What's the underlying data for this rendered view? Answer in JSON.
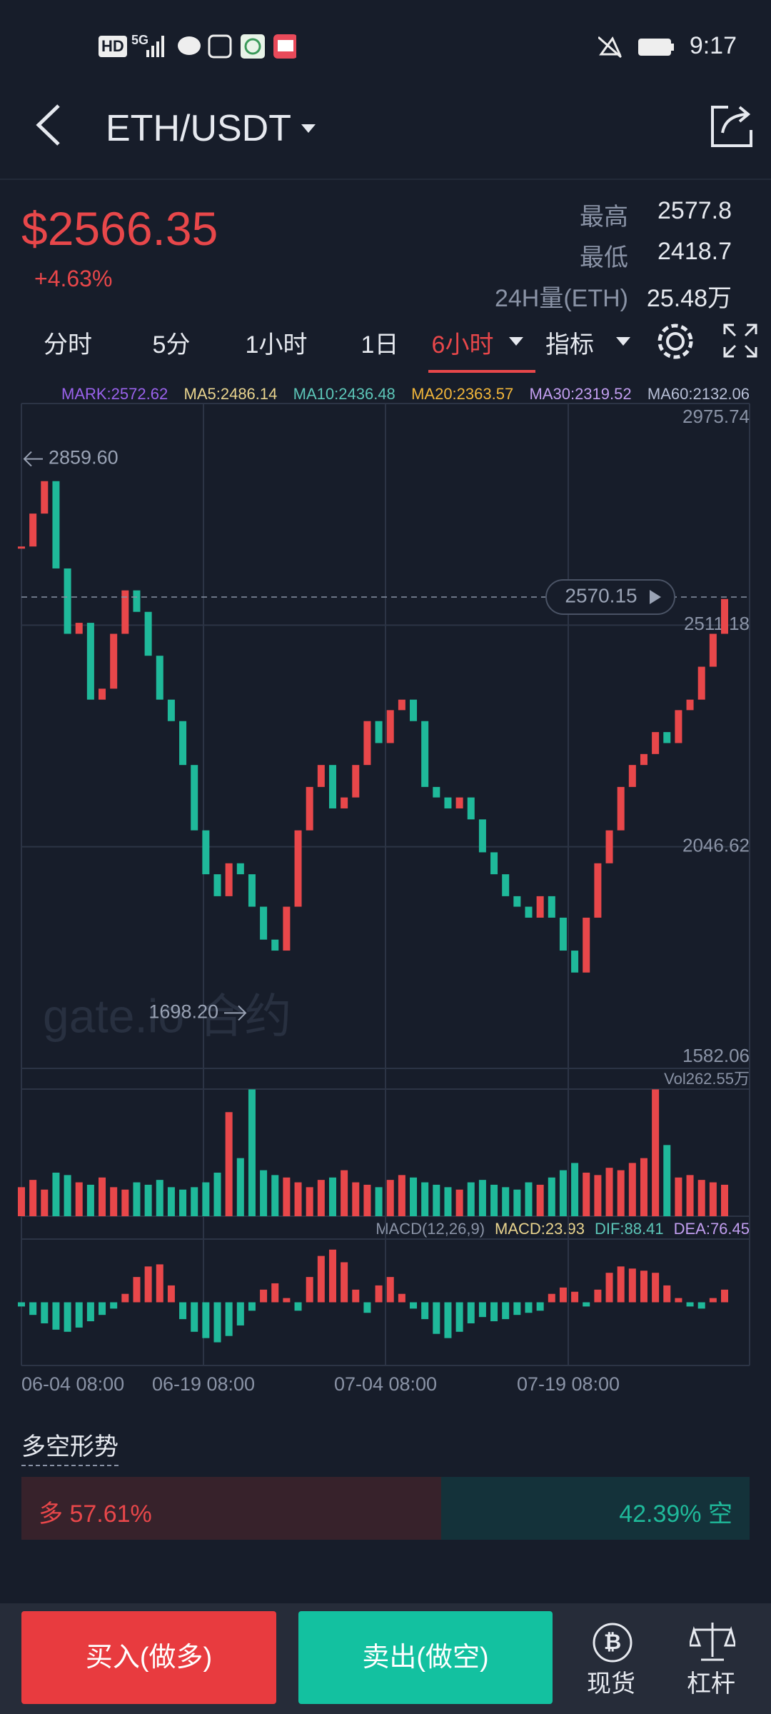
{
  "status_bar": {
    "icons": [
      "HD",
      "5G"
    ],
    "time": "9:17"
  },
  "header": {
    "pair": "ETH/USDT"
  },
  "ticker": {
    "price": "$2566.35",
    "change": "+4.63%",
    "stats": [
      {
        "label": "最高",
        "value": "2577.8"
      },
      {
        "label": "最低",
        "value": "2418.7"
      },
      {
        "label": "24H量(ETH)",
        "value": "25.48万"
      }
    ]
  },
  "tabs": {
    "items": [
      "分时",
      "5分",
      "1小时",
      "1日",
      "6小时",
      "指标"
    ],
    "active": 4
  },
  "chart_data": {
    "type": "candle",
    "indicators": [
      {
        "label": "MARK:2572.62",
        "color": "#9a62ec"
      },
      {
        "label": "MA5:2486.14",
        "color": "#e9d48e"
      },
      {
        "label": "MA10:2436.48",
        "color": "#5cc6b8"
      },
      {
        "label": "MA20:2363.57",
        "color": "#f2b63a"
      },
      {
        "label": "MA30:2319.52",
        "color": "#c29ef0"
      },
      {
        "label": "MA60:2132.06",
        "color": "#b7bfd6"
      }
    ],
    "ylim": [
      1582.06,
      2975.74
    ],
    "yticks": [
      2975.74,
      2511.18,
      2046.62,
      1582.06
    ],
    "values": [
      2676,
      2745,
      2813,
      2630,
      2493,
      2516,
      2355,
      2378,
      2493,
      2584,
      2539,
      2447,
      2355,
      2310,
      2218,
      2081,
      1989,
      1943,
      2012,
      1989,
      1921,
      1852,
      1829,
      1921,
      2081,
      2172,
      2218,
      2127,
      2150,
      2218,
      2310,
      2264,
      2333,
      2355,
      2310,
      2172,
      2150,
      2127,
      2150,
      2104,
      2035,
      1989,
      1943,
      1921,
      1898,
      1943,
      1898,
      1829,
      1783,
      1898,
      2012,
      2081,
      2172,
      2218,
      2241,
      2287,
      2264,
      2333,
      2355,
      2424,
      2493,
      2566
    ],
    "up_color": "#e8474a",
    "down_color": "#1fb99a",
    "annotations": {
      "high": {
        "value": 2859.6,
        "label": "2859.60"
      },
      "low": {
        "value": 1698.2,
        "label": "1698.20"
      },
      "last": 2570.15
    },
    "watermark": "gate.io 合约",
    "x_labels": [
      "06-04 08:00",
      "06-19 08:00",
      "07-04 08:00",
      "07-19 08:00"
    ],
    "volume": {
      "label": "Vol262.55万",
      "ylim": [
        0,
        262.55
      ],
      "values": [
        60,
        75,
        55,
        90,
        85,
        70,
        65,
        80,
        60,
        55,
        70,
        65,
        75,
        60,
        55,
        60,
        70,
        90,
        215,
        120,
        262,
        95,
        85,
        80,
        70,
        60,
        75,
        80,
        95,
        70,
        65,
        60,
        75,
        85,
        80,
        70,
        65,
        60,
        55,
        70,
        75,
        65,
        60,
        55,
        70,
        65,
        80,
        95,
        110,
        90,
        85,
        100,
        95,
        110,
        120,
        262,
        147,
        80,
        85,
        75,
        70,
        65
      ]
    },
    "macd": {
      "labels": [
        {
          "label": "MACD(12,26,9)",
          "color": "#8a93a6"
        },
        {
          "label": "MACD:23.93",
          "color": "#e9d48e"
        },
        {
          "label": "DIF:88.41",
          "color": "#5cc6b8"
        },
        {
          "label": "DEA:76.45",
          "color": "#c29ef0"
        }
      ],
      "ylim": [
        -150,
        150
      ],
      "values": [
        -10,
        -30,
        -50,
        -65,
        -70,
        -60,
        -45,
        -30,
        -15,
        20,
        60,
        85,
        90,
        40,
        -40,
        -70,
        -85,
        -95,
        -80,
        -55,
        -20,
        30,
        45,
        10,
        -20,
        60,
        110,
        125,
        95,
        30,
        -25,
        40,
        60,
        20,
        -15,
        -40,
        -75,
        -85,
        -70,
        -50,
        -35,
        -45,
        -40,
        -30,
        -25,
        -20,
        20,
        35,
        25,
        -10,
        30,
        70,
        85,
        80,
        75,
        70,
        40,
        10,
        -10,
        -15,
        10,
        30
      ]
    }
  },
  "sentiment": {
    "title": "多空形势",
    "long": {
      "value": 57.61,
      "label": "多 57.61%"
    },
    "short": {
      "value": 42.39,
      "label": "42.39% 空"
    }
  },
  "actions": {
    "buy": "买入(做多)",
    "sell": "卖出(做空)",
    "spot": "现货",
    "margin": "杠杆"
  }
}
